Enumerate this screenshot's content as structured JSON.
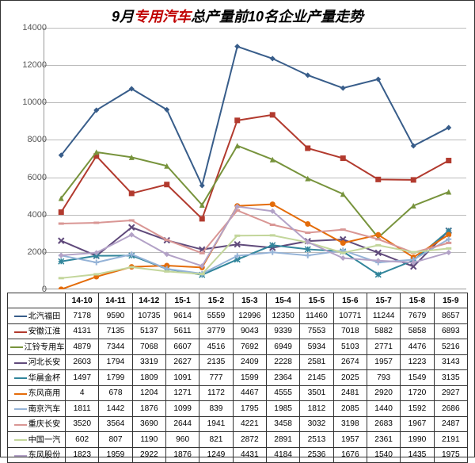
{
  "title_pre": "9月",
  "title_hl": "专用汽车",
  "title_post": "总产量前10名企业产量走势",
  "categories": [
    "14-10",
    "14-11",
    "14-12",
    "15-1",
    "15-2",
    "15-3",
    "15-4",
    "15-5",
    "15-6",
    "15-7",
    "15-8",
    "15-9"
  ],
  "y": {
    "min": 0,
    "max": 14000,
    "step": 2000
  },
  "series": [
    {
      "name": "北汽福田",
      "color": "#385d8a",
      "marker": "diamond",
      "values": [
        7178,
        9590,
        10735,
        9614,
        5559,
        12996,
        12350,
        11460,
        10771,
        11244,
        7679,
        8657
      ]
    },
    {
      "name": "安徽江淮",
      "color": "#b23a2e",
      "marker": "square",
      "values": [
        4131,
        7135,
        5137,
        5611,
        3779,
        9043,
        9339,
        7553,
        7018,
        5882,
        5858,
        6893
      ]
    },
    {
      "name": "江铃专用车",
      "color": "#77933c",
      "marker": "triangle",
      "values": [
        4879,
        7344,
        7068,
        6607,
        4516,
        7692,
        6949,
        5934,
        5103,
        2771,
        4476,
        5216
      ]
    },
    {
      "name": "河北长安",
      "color": "#604a7b",
      "marker": "x",
      "values": [
        2603,
        1794,
        3319,
        2627,
        2135,
        2409,
        2228,
        2581,
        2674,
        1957,
        1223,
        3143
      ]
    },
    {
      "name": "华晨金杯",
      "color": "#31859b",
      "marker": "star",
      "values": [
        1497,
        1799,
        1809,
        1091,
        777,
        1599,
        2364,
        2145,
        2025,
        793,
        1549,
        3135
      ]
    },
    {
      "name": "东风商用",
      "color": "#e46c0a",
      "marker": "circle",
      "values": [
        4,
        678,
        1204,
        1271,
        1172,
        4467,
        4555,
        3501,
        2481,
        2920,
        1720,
        2927
      ]
    },
    {
      "name": "南京汽车",
      "color": "#95b3d7",
      "marker": "plus",
      "values": [
        1811,
        1442,
        1876,
        1099,
        839,
        1795,
        1985,
        1812,
        2085,
        1440,
        1592,
        2686
      ]
    },
    {
      "name": "重庆长安",
      "color": "#d99694",
      "marker": "dash",
      "values": [
        3520,
        3564,
        3690,
        2644,
        1941,
        4221,
        3458,
        3032,
        3198,
        2683,
        1967,
        2487
      ]
    },
    {
      "name": "中国一汽",
      "color": "#c3d69b",
      "marker": "dash",
      "values": [
        602,
        807,
        1190,
        960,
        821,
        2872,
        2891,
        2513,
        1957,
        2361,
        1990,
        2191
      ]
    },
    {
      "name": "东风股份",
      "color": "#b3a2c7",
      "marker": "diamond",
      "values": [
        1823,
        1959,
        2922,
        1876,
        1249,
        4431,
        4184,
        2536,
        1676,
        1540,
        1435,
        1975
      ]
    }
  ],
  "chart": {
    "background_color": "#ffffff",
    "grid_color": "#bbbbbb",
    "axis_color": "#999999",
    "title_fontsize": 18,
    "tick_fontsize": 11,
    "line_width": 2,
    "marker_size": 7
  }
}
